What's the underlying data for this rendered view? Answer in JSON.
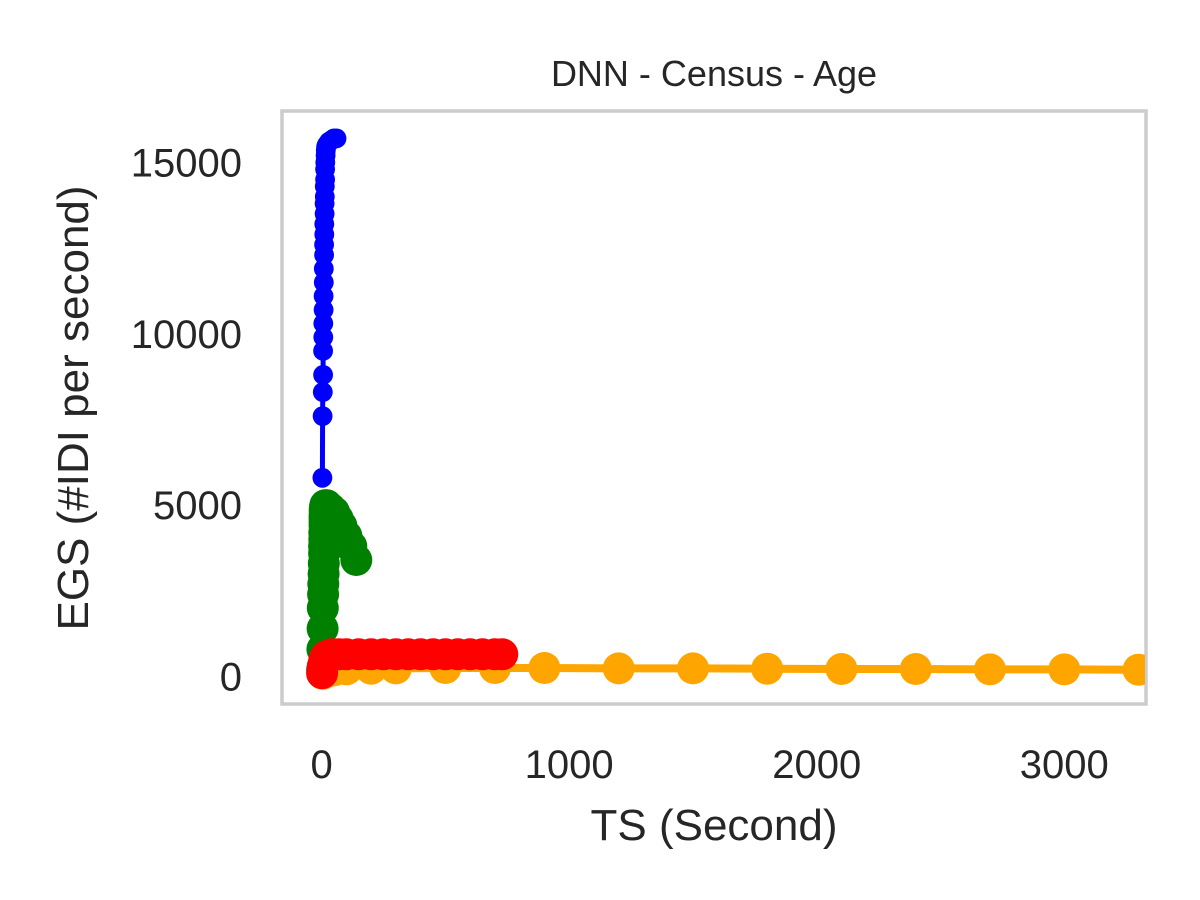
{
  "chart_data": {
    "type": "line",
    "title": "DNN - Census - Age",
    "xlabel": "TS (Second)",
    "ylabel": "EGS (#IDI  per second)",
    "xlim": [
      -160,
      3330
    ],
    "ylim": [
      -800,
      16500
    ],
    "xticks": [
      0,
      1000,
      2000,
      3000
    ],
    "yticks": [
      0,
      5000,
      10000,
      15000
    ],
    "grid": false,
    "legend": "none",
    "series": [
      {
        "color": "#ffa500",
        "marker_scale": 1.0,
        "x": [
          5,
          20,
          50,
          100,
          200,
          300,
          500,
          700,
          900,
          1200,
          1500,
          1800,
          2100,
          2400,
          2700,
          3000,
          3300
        ],
        "y": [
          80,
          130,
          180,
          210,
          230,
          240,
          250,
          250,
          250,
          240,
          240,
          230,
          220,
          220,
          210,
          210,
          200
        ]
      },
      {
        "color": "#008000",
        "marker_scale": 1.0,
        "x": [
          2,
          3,
          4,
          5,
          6,
          7,
          8,
          9,
          10,
          10,
          11,
          11,
          12,
          12,
          12,
          12,
          13,
          13,
          13,
          14,
          15,
          20,
          25,
          35,
          50,
          65,
          80,
          100,
          120,
          140
        ],
        "y": [
          200,
          800,
          1400,
          2000,
          2400,
          2700,
          3000,
          3300,
          3600,
          3800,
          4000,
          4200,
          4400,
          4500,
          4600,
          4700,
          4800,
          4850,
          4900,
          4950,
          5000,
          5000,
          4950,
          4900,
          4800,
          4600,
          4400,
          4100,
          3800,
          3400
        ]
      },
      {
        "color": "#ff0000",
        "marker_scale": 1.0,
        "x": [
          2,
          5,
          10,
          15,
          20,
          40,
          70,
          100,
          150,
          200,
          250,
          300,
          350,
          400,
          450,
          500,
          550,
          600,
          650,
          700,
          730
        ],
        "y": [
          100,
          300,
          450,
          550,
          600,
          650,
          650,
          650,
          650,
          650,
          650,
          650,
          650,
          650,
          650,
          650,
          650,
          650,
          650,
          650,
          650
        ]
      },
      {
        "color": "#0000ff",
        "marker_scale": 0.62,
        "x": [
          3,
          4,
          5,
          6,
          6,
          7,
          7,
          8,
          8,
          9,
          9,
          10,
          10,
          11,
          11,
          12,
          12,
          13,
          13,
          14,
          14,
          15,
          16,
          17,
          18,
          20,
          25,
          30,
          40,
          50,
          60
        ],
        "y": [
          5800,
          7600,
          8300,
          8800,
          9500,
          9900,
          10300,
          10700,
          11100,
          11500,
          11900,
          12300,
          12600,
          12900,
          13200,
          13500,
          13800,
          14000,
          14300,
          14500,
          14800,
          15000,
          15200,
          15350,
          15450,
          15500,
          15550,
          15600,
          15650,
          15700,
          15700
        ]
      }
    ]
  }
}
